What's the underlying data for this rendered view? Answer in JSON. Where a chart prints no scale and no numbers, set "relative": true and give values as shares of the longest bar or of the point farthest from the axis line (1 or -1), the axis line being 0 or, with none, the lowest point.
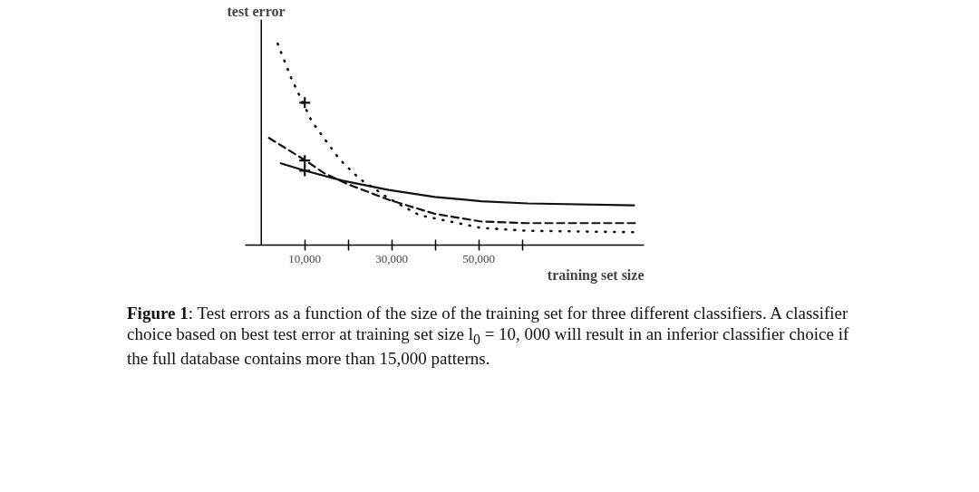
{
  "chart_data": {
    "type": "line",
    "relative": true,
    "xlabel": "training set size",
    "ylabel": "test error",
    "xlim": [
      -3700,
      88000
    ],
    "xticks": [
      {
        "value": 10000,
        "label": "10,000"
      },
      {
        "value": 20000,
        "label": null
      },
      {
        "value": 30000,
        "label": "30,000"
      },
      {
        "value": 40000,
        "label": null
      },
      {
        "value": 50000,
        "label": "50,000"
      },
      {
        "value": 60000,
        "label": null
      }
    ],
    "grid": false,
    "tick_labels": "x",
    "series": [
      {
        "color": "#111111",
        "line_style": "dotted",
        "x": [
          3760,
          6950,
          9570,
          11560,
          15100,
          17940,
          22550,
          29300,
          36400,
          50570,
          61200,
          86000
        ],
        "values": [
          1.0,
          0.825,
          0.707,
          0.616,
          0.511,
          0.427,
          0.33,
          0.232,
          0.148,
          0.085,
          0.071,
          0.064
        ]
      },
      {
        "color": "#111111",
        "line_style": "dashed",
        "x": [
          1770,
          10140,
          14400,
          19930,
          29300,
          39900,
          50570,
          61200,
          86000
        ],
        "values": [
          0.532,
          0.42,
          0.358,
          0.302,
          0.225,
          0.155,
          0.117,
          0.109,
          0.109
        ]
      },
      {
        "color": "#111111",
        "line_style": "solid",
        "x": [
          4470,
          10140,
          18650,
          29300,
          39900,
          50570,
          61200,
          85700
        ],
        "values": [
          0.406,
          0.369,
          0.32,
          0.274,
          0.239,
          0.218,
          0.207,
          0.197
        ]
      },
      {
        "type": "scatter",
        "marker": "cross",
        "color": "#111111",
        "x": [
          10000,
          10000,
          10000
        ],
        "values": [
          0.707,
          0.42,
          0.369
        ]
      }
    ],
    "annotations": [
      "Figure 1: Test errors as a function of the size of the training set for three different classifiers. A classifier choice based on best test error at training set size l$_{0}$ = 10, 000 will result in an inferior classifier choice if the full database contains more than 15,000 patterns."
    ]
  }
}
